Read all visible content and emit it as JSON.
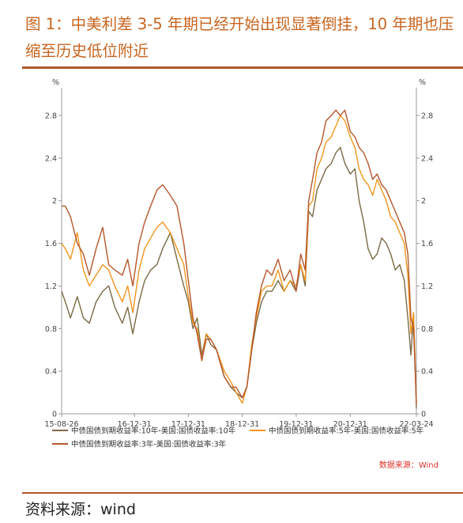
{
  "title": "图 1：中美利差 3-5 年期已经开始出现显著倒挂，10 年期也压缩至历史低位附近",
  "footer_source": "资料来源：wind",
  "chart_data": {
    "type": "line",
    "unit_left": "%",
    "unit_right": "%",
    "source_note": "数据来源：Wind",
    "ylim": [
      0,
      3.0
    ],
    "y_ticks": [
      0,
      0.4,
      0.8,
      1.2,
      1.6,
      2,
      2.4,
      2.8
    ],
    "y_tick_labels": [
      "0",
      "0.4",
      "0.8",
      "1.2",
      "1.6",
      "2",
      "2.4",
      "2.8"
    ],
    "x_range": [
      "2015-08-26",
      "2022-03-24"
    ],
    "x_ticks": [
      "2015-08-26",
      "2016-12-31",
      "2017-12-31",
      "2018-12-31",
      "2019-12-31",
      "2020-12-31",
      "2022-03-24"
    ],
    "x_tick_labels": [
      "15-08-26",
      "16-12-31",
      "17-12-31",
      "18-12-31",
      "19-12-31",
      "20-12-31",
      "22-03-24"
    ],
    "grid": false,
    "legend_position": "bottom",
    "series": [
      {
        "name": "中债国债到期收益率:10年-美国:国债收益率:10年",
        "color": "#7a6a45",
        "x": [
          "2015-08-26",
          "2015-09-20",
          "2015-10-25",
          "2015-12-10",
          "2016-01-20",
          "2016-03-01",
          "2016-04-15",
          "2016-05-30",
          "2016-07-10",
          "2016-08-20",
          "2016-10-10",
          "2016-11-15",
          "2016-12-20",
          "2017-01-31",
          "2017-03-10",
          "2017-04-20",
          "2017-06-01",
          "2017-07-10",
          "2017-08-31",
          "2017-10-15",
          "2017-11-30",
          "2017-12-31",
          "2018-01-31",
          "2018-03-01",
          "2018-04-01",
          "2018-05-01",
          "2018-06-01",
          "2018-07-10",
          "2018-08-31",
          "2018-10-15",
          "2018-11-20",
          "2018-12-31",
          "2019-01-31",
          "2019-03-05",
          "2019-04-05",
          "2019-05-10",
          "2019-06-15",
          "2019-07-20",
          "2019-08-31",
          "2019-10-10",
          "2019-11-20",
          "2019-12-31",
          "2020-01-31",
          "2020-03-01",
          "2020-03-25",
          "2020-04-20",
          "2020-05-20",
          "2020-06-20",
          "2020-07-20",
          "2020-08-25",
          "2020-09-25",
          "2020-10-25",
          "2020-11-25",
          "2020-12-31",
          "2021-02-01",
          "2021-03-01",
          "2021-04-01",
          "2021-05-01",
          "2021-06-01",
          "2021-07-01",
          "2021-08-01",
          "2021-09-01",
          "2021-10-01",
          "2021-11-01",
          "2021-12-01",
          "2022-01-01",
          "2022-01-25",
          "2022-02-15",
          "2022-03-05",
          "2022-03-24"
        ],
        "values": [
          1.15,
          1.05,
          0.9,
          1.1,
          0.9,
          0.85,
          1.05,
          1.15,
          1.2,
          1.0,
          0.85,
          1.0,
          0.75,
          1.05,
          1.25,
          1.35,
          1.4,
          1.55,
          1.7,
          1.45,
          1.2,
          1.05,
          0.8,
          0.9,
          0.55,
          0.75,
          0.65,
          0.6,
          0.35,
          0.25,
          0.2,
          0.15,
          0.25,
          0.6,
          0.85,
          1.05,
          1.15,
          1.15,
          1.25,
          1.15,
          1.25,
          1.15,
          1.4,
          1.2,
          1.9,
          1.85,
          2.1,
          2.2,
          2.3,
          2.35,
          2.45,
          2.5,
          2.35,
          2.25,
          2.3,
          2.0,
          1.8,
          1.55,
          1.45,
          1.5,
          1.65,
          1.6,
          1.5,
          1.35,
          1.4,
          1.25,
          0.9,
          0.55,
          0.95,
          0.05
        ]
      },
      {
        "name": "中债国债到期收益率:5年-美国:国债收益率:5年",
        "color": "#f0961e",
        "x": [
          "2015-08-26",
          "2015-09-20",
          "2015-10-25",
          "2015-12-10",
          "2016-01-20",
          "2016-03-01",
          "2016-04-15",
          "2016-05-30",
          "2016-07-10",
          "2016-08-20",
          "2016-10-10",
          "2016-11-15",
          "2016-12-20",
          "2017-01-31",
          "2017-03-10",
          "2017-04-20",
          "2017-06-01",
          "2017-07-10",
          "2017-08-31",
          "2017-10-15",
          "2017-11-30",
          "2017-12-31",
          "2018-01-31",
          "2018-03-01",
          "2018-04-01",
          "2018-05-01",
          "2018-06-01",
          "2018-07-10",
          "2018-08-31",
          "2018-10-15",
          "2018-11-20",
          "2018-12-31",
          "2019-01-31",
          "2019-03-05",
          "2019-04-05",
          "2019-05-10",
          "2019-06-15",
          "2019-07-20",
          "2019-08-31",
          "2019-10-10",
          "2019-11-20",
          "2019-12-31",
          "2020-01-31",
          "2020-03-01",
          "2020-03-25",
          "2020-04-20",
          "2020-05-20",
          "2020-06-20",
          "2020-07-20",
          "2020-08-25",
          "2020-09-25",
          "2020-10-25",
          "2020-11-25",
          "2020-12-31",
          "2021-02-01",
          "2021-03-01",
          "2021-04-01",
          "2021-05-01",
          "2021-06-01",
          "2021-07-01",
          "2021-08-01",
          "2021-09-01",
          "2021-10-01",
          "2021-11-01",
          "2021-12-01",
          "2022-01-01",
          "2022-01-25",
          "2022-02-15",
          "2022-03-05",
          "2022-03-24"
        ],
        "values": [
          1.6,
          1.55,
          1.45,
          1.7,
          1.35,
          1.2,
          1.3,
          1.4,
          1.35,
          1.2,
          1.05,
          1.2,
          0.95,
          1.35,
          1.55,
          1.65,
          1.75,
          1.8,
          1.7,
          1.55,
          1.4,
          1.1,
          0.85,
          0.8,
          0.5,
          0.75,
          0.7,
          0.6,
          0.4,
          0.3,
          0.2,
          0.1,
          0.25,
          0.65,
          0.9,
          1.15,
          1.2,
          1.2,
          1.35,
          1.15,
          1.25,
          1.2,
          1.4,
          1.25,
          1.95,
          2.0,
          2.3,
          2.4,
          2.55,
          2.6,
          2.7,
          2.8,
          2.75,
          2.6,
          2.5,
          2.3,
          2.2,
          2.15,
          2.05,
          2.2,
          2.1,
          2.0,
          1.85,
          1.8,
          1.7,
          1.6,
          1.3,
          0.75,
          0.95,
          0.1
        ]
      },
      {
        "name": "中债国债到期收益率:3年-美国:国债收益率:3年",
        "color": "#b5562c",
        "x": [
          "2015-08-26",
          "2015-09-20",
          "2015-10-25",
          "2015-12-10",
          "2016-01-20",
          "2016-03-01",
          "2016-04-15",
          "2016-05-30",
          "2016-07-10",
          "2016-08-20",
          "2016-10-10",
          "2016-11-15",
          "2016-12-20",
          "2017-01-31",
          "2017-03-10",
          "2017-04-20",
          "2017-06-01",
          "2017-07-10",
          "2017-08-31",
          "2017-10-15",
          "2017-11-30",
          "2017-12-31",
          "2018-01-31",
          "2018-03-01",
          "2018-04-01",
          "2018-05-01",
          "2018-06-01",
          "2018-07-10",
          "2018-08-31",
          "2018-10-15",
          "2018-11-20",
          "2018-12-31",
          "2019-01-31",
          "2019-03-05",
          "2019-04-05",
          "2019-05-10",
          "2019-06-15",
          "2019-07-20",
          "2019-08-31",
          "2019-10-10",
          "2019-11-20",
          "2019-12-31",
          "2020-01-31",
          "2020-03-01",
          "2020-03-25",
          "2020-04-20",
          "2020-05-20",
          "2020-06-20",
          "2020-07-20",
          "2020-08-25",
          "2020-09-25",
          "2020-10-25",
          "2020-11-25",
          "2020-12-31",
          "2021-02-01",
          "2021-03-01",
          "2021-04-01",
          "2021-05-01",
          "2021-06-01",
          "2021-07-01",
          "2021-08-01",
          "2021-09-01",
          "2021-10-01",
          "2021-11-01",
          "2021-12-01",
          "2022-01-01",
          "2022-01-25",
          "2022-02-15",
          "2022-03-05",
          "2022-03-24"
        ],
        "values": [
          1.95,
          1.95,
          1.85,
          1.6,
          1.5,
          1.3,
          1.55,
          1.75,
          1.4,
          1.35,
          1.3,
          1.45,
          1.2,
          1.6,
          1.8,
          1.95,
          2.1,
          2.15,
          2.05,
          1.95,
          1.6,
          1.25,
          0.9,
          0.75,
          0.5,
          0.7,
          0.7,
          0.6,
          0.35,
          0.25,
          0.25,
          0.15,
          0.25,
          0.6,
          0.95,
          1.2,
          1.35,
          1.3,
          1.45,
          1.25,
          1.35,
          1.15,
          1.5,
          1.35,
          2.0,
          2.2,
          2.45,
          2.55,
          2.75,
          2.8,
          2.85,
          2.8,
          2.85,
          2.65,
          2.6,
          2.5,
          2.45,
          2.35,
          2.2,
          2.25,
          2.15,
          2.1,
          2.0,
          1.9,
          1.8,
          1.7,
          1.5,
          0.9,
          0.8,
          0.1
        ]
      }
    ]
  }
}
